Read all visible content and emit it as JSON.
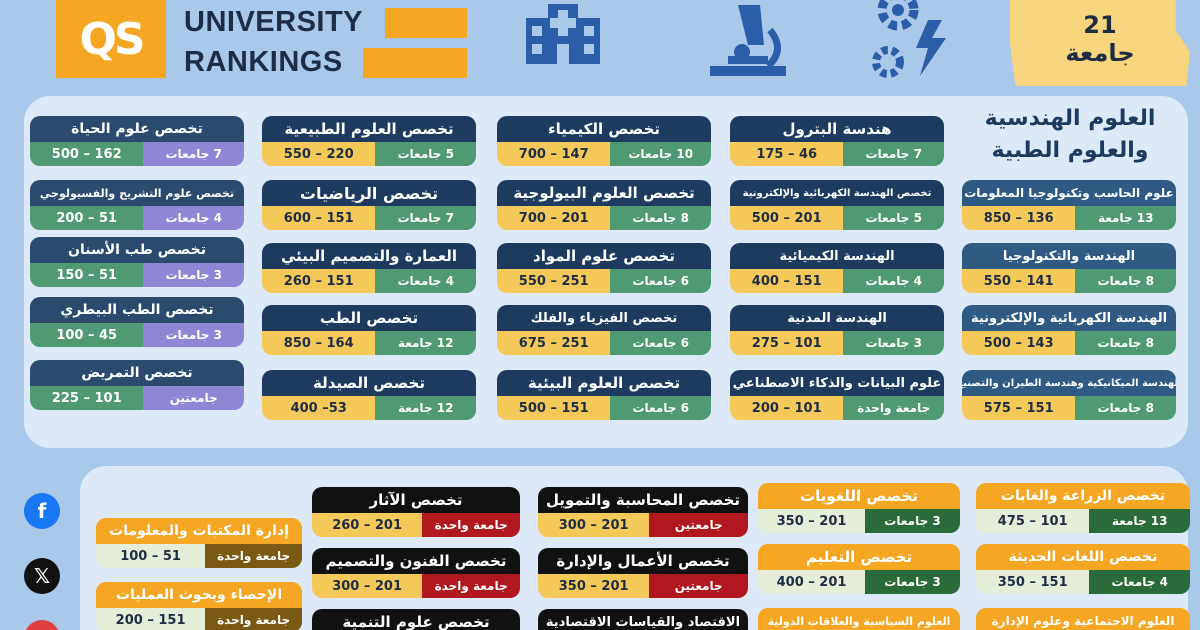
{
  "header": {
    "logo_text": "QS",
    "title_line1": "UNIVERSITY",
    "title_line2": "RANKINGS",
    "count_number": "21",
    "count_label": "جامعة",
    "icons": [
      "hospital-icon",
      "microscope-icon",
      "gears-lightning-icon"
    ]
  },
  "section1": {
    "heading_line1": "العلوم الهندسية",
    "heading_line2": "والعلوم الطبية",
    "cards": [
      {
        "title": "علوم الحاسب وتكنولوجيا المعلومات",
        "count": "13 جامعة",
        "range": "850 – 136"
      },
      {
        "title": "الهندسة والتكنولوجيا",
        "count": "8 جامعات",
        "range": "550 – 141"
      },
      {
        "title": "الهندسة الكهربائية والإلكترونية",
        "count": "8 جامعات",
        "range": "500 – 143"
      },
      {
        "title": "الهندسة الميكانيكية وهندسة الطيران والتصنيع",
        "count": "8 جامعات",
        "range": "575 – 151"
      },
      {
        "title": "هندسة البترول",
        "count": "7 جامعات",
        "range": "175 – 46"
      },
      {
        "title": "تخصص الهندسة الكهربائية والإلكترونية",
        "count": "5 جامعات",
        "range": "500 – 201"
      },
      {
        "title": "الهندسة الكيميائية",
        "count": "4 جامعات",
        "range": "400 – 151"
      },
      {
        "title": "الهندسة المدنية",
        "count": "3 جامعات",
        "range": "275 – 101"
      },
      {
        "title": "علوم البيانات والذكاء الاصطناعي",
        "count": "جامعة واحدة",
        "range": "200 – 101"
      },
      {
        "title": "تخصص الكيمياء",
        "count": "10 جامعات",
        "range": "700 – 147"
      },
      {
        "title": "تخصص العلوم البيولوجية",
        "count": "8 جامعات",
        "range": "700 – 201"
      },
      {
        "title": "تخصص علوم المواد",
        "count": "6 جامعات",
        "range": "550 – 251"
      },
      {
        "title": "تخصص الفيزياء والفلك",
        "count": "6 جامعات",
        "range": "675 – 251"
      },
      {
        "title": "تخصص العلوم البيئية",
        "count": "6 جامعات",
        "range": "500 – 151"
      },
      {
        "title": "تخصص العلوم الطبيعية",
        "count": "5 جامعات",
        "range": "550 – 220"
      },
      {
        "title": "تخصص الرياضيات",
        "count": "7 جامعات",
        "range": "600 – 151"
      },
      {
        "title": "العمارة والتصميم البيئي",
        "count": "4 جامعات",
        "range": "260 – 151"
      },
      {
        "title": "تخصص الطب",
        "count": "12 جامعة",
        "range": "850 – 164"
      },
      {
        "title": "تخصص الصيدلة",
        "count": "12 جامعة",
        "range": "400 –53"
      },
      {
        "title": "تخصص علوم الحياة",
        "count": "7 جامعات",
        "range": "500 – 162"
      },
      {
        "title": "تخصص علوم التشريح والفسيولوجي",
        "count": "4 جامعات",
        "range": "200 – 51"
      },
      {
        "title": "تخصص طب الأسنان",
        "count": "3 جامعات",
        "range": "150 – 51"
      },
      {
        "title": "تخصص الطب البيطري",
        "count": "3 جامعات",
        "range": "100 – 45"
      },
      {
        "title": "تخصص التمريض",
        "count": "جامعتين",
        "range": "225 – 101"
      }
    ]
  },
  "section2": {
    "cards": [
      {
        "title": "تخصص الزراعة والغابات",
        "count": "13 جامعة",
        "range": "475 – 101"
      },
      {
        "title": "تخصص اللغات الحديثة",
        "count": "4 جامعات",
        "range": "350 – 151"
      },
      {
        "title": "تخصص اللغويات",
        "count": "3 جامعات",
        "range": "350 – 201"
      },
      {
        "title": "تخصص التعليم",
        "count": "3 جامعات",
        "range": "400 – 201"
      },
      {
        "title": "تخصص المحاسبة والتمويل",
        "count": "جامعتين",
        "range": "300 – 201"
      },
      {
        "title": "تخصص الأعمال والإدارة",
        "count": "جامعتين",
        "range": "350 – 201"
      },
      {
        "title": "تخصص الآثار",
        "count": "جامعة واحدة",
        "range": "260 – 201"
      },
      {
        "title": "تخصص الفنون والتصميم",
        "count": "جامعة واحدة",
        "range": "300 – 201"
      },
      {
        "title": "إدارة المكتبات والمعلومات",
        "count": "جامعة واحدة",
        "range": "100 – 51"
      },
      {
        "title": "الإحصاء وبحوث العمليات",
        "count": "جامعة واحدة",
        "range": "200 – 151"
      },
      {
        "title": "العلوم الاجتماعية وعلوم الإدارة",
        "count": "",
        "range": ""
      },
      {
        "title": "العلوم السياسية والعلاقات الدولية",
        "count": "",
        "range": ""
      },
      {
        "title": "الاقتصاد والقياسات الاقتصادية",
        "count": "",
        "range": ""
      },
      {
        "title": "تخصص علوم التنمية",
        "count": "",
        "range": ""
      }
    ]
  },
  "social": [
    "facebook-icon",
    "x-icon"
  ],
  "colors": {
    "background": "#a9c8ea",
    "accent": "#f5a623",
    "navy": "#1e3a5f"
  }
}
